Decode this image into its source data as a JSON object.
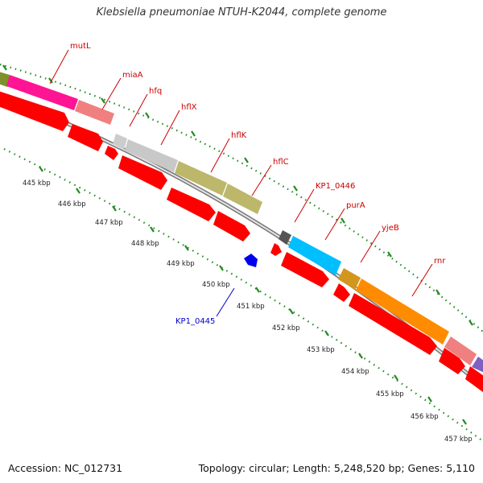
{
  "title": "Klebsiella pneumoniae NTUH-K2044, complete genome",
  "footer": {
    "accession": "Accession: NC_012731",
    "summary": "Topology: circular; Length: 5,248,520 bp; Genes: 5,110"
  },
  "colors": {
    "forward_label": "#cc0000",
    "reverse_label": "#0000cc",
    "cds": "#ff0000",
    "backbone": "#999999",
    "tick_dots": "#228b22"
  },
  "ticks": [
    "445 kbp",
    "446 kbp",
    "447 kbp",
    "448 kbp",
    "449 kbp",
    "450 kbp",
    "451 kbp",
    "452 kbp",
    "453 kbp",
    "454 kbp",
    "455 kbp",
    "456 kbp",
    "457 kbp"
  ],
  "forward_genes": [
    {
      "label": "mutL",
      "color": "#ff1493"
    },
    {
      "label": "miaA",
      "color": "#f08080"
    },
    {
      "label": "hfq",
      "color": "#cccccc"
    },
    {
      "label": "hflX",
      "color": "#c8c8c8"
    },
    {
      "label": "hflK",
      "color": "#bdb76b"
    },
    {
      "label": "hflC",
      "color": "#bdb76b"
    },
    {
      "label": "KP1_0446",
      "color": "#606060"
    },
    {
      "label": "purA",
      "color": "#00bfff"
    },
    {
      "label": "yjeB",
      "color": "#d2961e"
    },
    {
      "label": "rnr",
      "color": "#ff8c00"
    }
  ],
  "reverse_genes": [
    {
      "label": "KP1_0445",
      "color": "#0000ff"
    }
  ]
}
